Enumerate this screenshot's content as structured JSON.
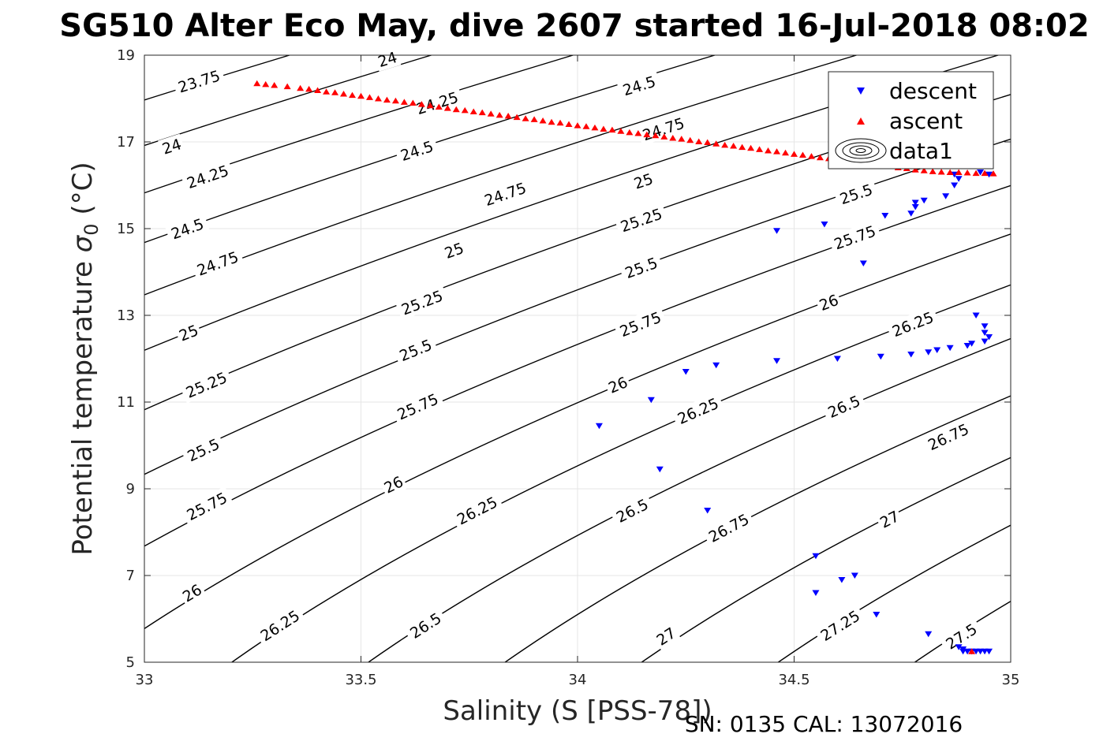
{
  "chart_data": {
    "type": "scatter",
    "title": "SG510 Alter Eco May, dive 2607 started 16-Jul-2018 08:02",
    "xlabel": "Salinity (S [PSS-78])",
    "ylabel": "Potential temperature",
    "ylabel_symbol": "σ",
    "ylabel_subscript": "0",
    "ylabel_unit": " (°C)",
    "xlim": [
      33,
      35
    ],
    "ylim": [
      5,
      19
    ],
    "xticks": [
      33,
      33.5,
      34,
      34.5,
      35
    ],
    "xtick_labels": [
      "33",
      "33.5",
      "34",
      "34.5",
      "35"
    ],
    "yticks": [
      5,
      7,
      9,
      11,
      13,
      15,
      17,
      19
    ],
    "ytick_labels": [
      "5",
      "7",
      "9",
      "11",
      "13",
      "15",
      "17",
      "19"
    ],
    "grid": true,
    "legend_position": "top-right",
    "legend": [
      "descent",
      "ascent",
      "data1"
    ],
    "footer": "SN: 0135  CAL: 13072016",
    "series": [
      {
        "name": "descent",
        "marker": "triangle-down",
        "color": "#0000ff",
        "points": [
          [
            34.05,
            10.45
          ],
          [
            34.17,
            11.05
          ],
          [
            34.19,
            9.45
          ],
          [
            34.25,
            11.7
          ],
          [
            34.3,
            8.5
          ],
          [
            34.32,
            11.85
          ],
          [
            34.46,
            14.95
          ],
          [
            34.46,
            11.95
          ],
          [
            34.55,
            7.45
          ],
          [
            34.55,
            6.6
          ],
          [
            34.57,
            15.1
          ],
          [
            34.6,
            12.0
          ],
          [
            34.61,
            6.9
          ],
          [
            34.64,
            7.0
          ],
          [
            34.66,
            14.2
          ],
          [
            34.69,
            6.1
          ],
          [
            34.7,
            12.05
          ],
          [
            34.71,
            15.3
          ],
          [
            34.77,
            12.1
          ],
          [
            34.77,
            15.35
          ],
          [
            34.78,
            15.5
          ],
          [
            34.78,
            15.6
          ],
          [
            34.8,
            15.65
          ],
          [
            34.81,
            12.15
          ],
          [
            34.81,
            5.65
          ],
          [
            34.83,
            12.2
          ],
          [
            34.85,
            15.75
          ],
          [
            34.86,
            12.25
          ],
          [
            34.87,
            16.25
          ],
          [
            34.87,
            16.0
          ],
          [
            34.88,
            16.15
          ],
          [
            34.88,
            5.35
          ],
          [
            34.89,
            5.3
          ],
          [
            34.89,
            5.25
          ],
          [
            34.9,
            12.3
          ],
          [
            34.9,
            5.25
          ],
          [
            34.91,
            12.35
          ],
          [
            34.91,
            5.25
          ],
          [
            34.92,
            13.0
          ],
          [
            34.92,
            5.25
          ],
          [
            34.93,
            16.3
          ],
          [
            34.93,
            5.25
          ],
          [
            34.94,
            12.75
          ],
          [
            34.94,
            12.6
          ],
          [
            34.94,
            12.4
          ],
          [
            34.94,
            5.25
          ],
          [
            34.95,
            16.25
          ],
          [
            34.95,
            12.5
          ],
          [
            34.95,
            5.25
          ]
        ]
      },
      {
        "name": "ascent",
        "marker": "triangle-up",
        "color": "#ff0000",
        "points": [
          [
            33.26,
            18.35
          ],
          [
            33.28,
            18.33
          ],
          [
            33.3,
            18.31
          ],
          [
            33.33,
            18.28
          ],
          [
            33.36,
            18.24
          ],
          [
            33.38,
            18.22
          ],
          [
            33.4,
            18.19
          ],
          [
            33.42,
            18.16
          ],
          [
            33.44,
            18.14
          ],
          [
            33.46,
            18.11
          ],
          [
            33.48,
            18.08
          ],
          [
            33.5,
            18.06
          ],
          [
            33.52,
            18.03
          ],
          [
            33.54,
            18.0
          ],
          [
            33.56,
            17.97
          ],
          [
            33.58,
            17.95
          ],
          [
            33.6,
            17.92
          ],
          [
            33.62,
            17.9
          ],
          [
            33.64,
            17.87
          ],
          [
            33.66,
            17.84
          ],
          [
            33.68,
            17.81
          ],
          [
            33.7,
            17.78
          ],
          [
            33.72,
            17.75
          ],
          [
            33.74,
            17.73
          ],
          [
            33.76,
            17.7
          ],
          [
            33.78,
            17.68
          ],
          [
            33.8,
            17.65
          ],
          [
            33.82,
            17.62
          ],
          [
            33.84,
            17.6
          ],
          [
            33.86,
            17.57
          ],
          [
            33.88,
            17.54
          ],
          [
            33.9,
            17.52
          ],
          [
            33.92,
            17.49
          ],
          [
            33.94,
            17.46
          ],
          [
            33.96,
            17.44
          ],
          [
            33.98,
            17.41
          ],
          [
            34.0,
            17.38
          ],
          [
            34.02,
            17.36
          ],
          [
            34.04,
            17.33
          ],
          [
            34.06,
            17.3
          ],
          [
            34.08,
            17.28
          ],
          [
            34.1,
            17.25
          ],
          [
            34.12,
            17.22
          ],
          [
            34.14,
            17.2
          ],
          [
            34.16,
            17.17
          ],
          [
            34.18,
            17.15
          ],
          [
            34.2,
            17.12
          ],
          [
            34.22,
            17.09
          ],
          [
            34.24,
            17.07
          ],
          [
            34.26,
            17.04
          ],
          [
            34.28,
            17.01
          ],
          [
            34.3,
            16.99
          ],
          [
            34.32,
            16.96
          ],
          [
            34.34,
            16.93
          ],
          [
            34.36,
            16.91
          ],
          [
            34.38,
            16.88
          ],
          [
            34.4,
            16.86
          ],
          [
            34.42,
            16.83
          ],
          [
            34.44,
            16.8
          ],
          [
            34.46,
            16.78
          ],
          [
            34.48,
            16.75
          ],
          [
            34.5,
            16.72
          ],
          [
            34.52,
            16.7
          ],
          [
            34.54,
            16.67
          ],
          [
            34.56,
            16.64
          ],
          [
            34.58,
            16.62
          ],
          [
            34.6,
            16.59
          ],
          [
            34.62,
            16.57
          ],
          [
            34.64,
            16.54
          ],
          [
            34.66,
            16.51
          ],
          [
            34.68,
            16.49
          ],
          [
            34.7,
            16.46
          ],
          [
            34.72,
            16.44
          ],
          [
            34.74,
            16.41
          ],
          [
            34.76,
            16.39
          ],
          [
            34.78,
            16.36
          ],
          [
            34.8,
            16.34
          ],
          [
            34.82,
            16.32
          ],
          [
            34.84,
            16.31
          ],
          [
            34.86,
            16.3
          ],
          [
            34.88,
            16.3
          ],
          [
            34.9,
            16.29
          ],
          [
            34.92,
            16.28
          ],
          [
            34.94,
            16.28
          ],
          [
            34.96,
            16.27
          ],
          [
            34.91,
            5.25
          ]
        ]
      }
    ],
    "contours": {
      "name": "data1",
      "levels": [
        23.75,
        24,
        24.25,
        24.5,
        24.75,
        25,
        25.25,
        25.5,
        25.75,
        26,
        26.25,
        26.5,
        26.75,
        27,
        27.25,
        27.5
      ],
      "labels": [
        {
          "text": "23.75",
          "s": 33.126,
          "t": 18.4
        },
        {
          "text": "24",
          "s": 33.561,
          "t": 18.91
        },
        {
          "text": "24.25",
          "s": 33.676,
          "t": 17.9
        },
        {
          "text": "24.5",
          "s": 34.142,
          "t": 18.3
        },
        {
          "text": "24.75",
          "s": 34.198,
          "t": 17.3
        },
        {
          "text": "24",
          "s": 33.063,
          "t": 16.9
        },
        {
          "text": "24.25",
          "s": 33.146,
          "t": 16.2
        },
        {
          "text": "24.5",
          "s": 33.629,
          "t": 16.8
        },
        {
          "text": "24.75",
          "s": 33.833,
          "t": 15.8
        },
        {
          "text": "25",
          "s": 34.152,
          "t": 16.1
        },
        {
          "text": "24.5",
          "s": 33.099,
          "t": 15.0
        },
        {
          "text": "24.75",
          "s": 33.169,
          "t": 14.2
        },
        {
          "text": "25",
          "s": 33.715,
          "t": 14.5
        },
        {
          "text": "25.25",
          "s": 33.641,
          "t": 13.3
        },
        {
          "text": "25.25",
          "s": 34.147,
          "t": 15.2
        },
        {
          "text": "25.5",
          "s": 34.147,
          "t": 14.1
        },
        {
          "text": "25.5",
          "s": 34.643,
          "t": 15.8
        },
        {
          "text": "25.75",
          "s": 34.64,
          "t": 14.8
        },
        {
          "text": "25",
          "s": 33.102,
          "t": 12.6
        },
        {
          "text": "25.25",
          "s": 33.143,
          "t": 11.4
        },
        {
          "text": "25.5",
          "s": 33.626,
          "t": 12.2
        },
        {
          "text": "25.75",
          "s": 34.145,
          "t": 12.8
        },
        {
          "text": "26",
          "s": 34.58,
          "t": 13.3
        },
        {
          "text": "26.25",
          "s": 34.774,
          "t": 12.8
        },
        {
          "text": "26",
          "s": 34.093,
          "t": 11.4
        },
        {
          "text": "25.75",
          "s": 33.631,
          "t": 10.9
        },
        {
          "text": "26.25",
          "s": 34.278,
          "t": 10.8
        },
        {
          "text": "26.5",
          "s": 34.615,
          "t": 10.9
        },
        {
          "text": "26.75",
          "s": 34.856,
          "t": 10.2
        },
        {
          "text": "25.5",
          "s": 33.136,
          "t": 9.9
        },
        {
          "text": "25.75",
          "s": 33.144,
          "t": 8.6
        },
        {
          "text": "26",
          "s": 33.575,
          "t": 9.1
        },
        {
          "text": "26.25",
          "s": 33.768,
          "t": 8.5
        },
        {
          "text": "26.5",
          "s": 34.126,
          "t": 8.5
        },
        {
          "text": "26.75",
          "s": 34.349,
          "t": 8.1
        },
        {
          "text": "27",
          "s": 34.72,
          "t": 8.3
        },
        {
          "text": "26",
          "s": 33.11,
          "t": 6.6
        },
        {
          "text": "26.25",
          "s": 33.313,
          "t": 5.85
        },
        {
          "text": "26.5",
          "s": 33.649,
          "t": 5.85
        },
        {
          "text": "27",
          "s": 34.204,
          "t": 5.6
        },
        {
          "text": "27.25",
          "s": 34.606,
          "t": 5.85
        },
        {
          "text": "27.5",
          "s": 34.886,
          "t": 5.6
        }
      ]
    }
  }
}
